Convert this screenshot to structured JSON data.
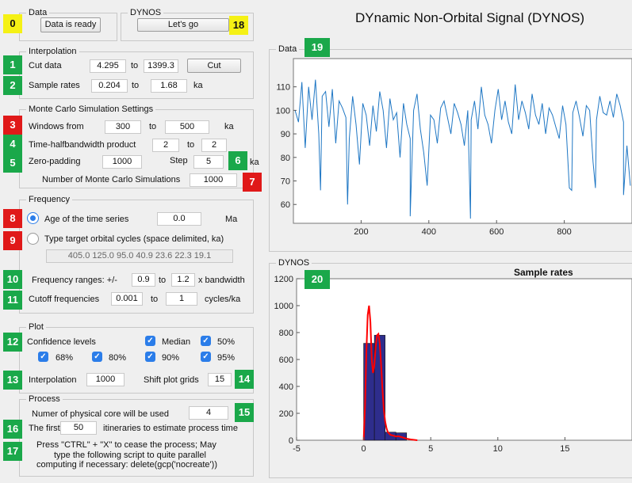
{
  "app_title": "DYnamic Non-Orbital Signal (DYNOS)",
  "data_panel": {
    "title": "Data",
    "status_button": "Data is ready"
  },
  "dynos_panel": {
    "title": "DYNOS",
    "go_button": "Let's go"
  },
  "interpolation": {
    "title": "Interpolation",
    "cut_label": "Cut data",
    "cut_from": "4.295",
    "cut_to_label": "to",
    "cut_to": "1399.3",
    "cut_button": "Cut",
    "sample_label": "Sample rates",
    "sample_from": "0.204",
    "sample_to_label": "to",
    "sample_to": "1.68",
    "sample_unit": "ka"
  },
  "monte_carlo": {
    "title": "Monte Carlo Simulation Settings",
    "windows_label": "Windows from",
    "windows_from": "300",
    "windows_to_label": "to",
    "windows_to": "500",
    "windows_unit": "ka",
    "thb_label": "Time-halfbandwidth product",
    "thb_from": "2",
    "thb_to_label": "to",
    "thb_to": "2",
    "zp_label": "Zero-padding",
    "zp_value": "1000",
    "step_label": "Step",
    "step_value": "5",
    "step_unit": "ka",
    "nsim_label": "Number of Monte Carlo Simulations",
    "nsim_value": "1000"
  },
  "frequency": {
    "title": "Frequency",
    "age_label": "Age of the time series",
    "age_value": "0.0",
    "age_unit": "Ma",
    "target_label": "Type target orbital cycles (space delimited, ka)",
    "target_value": "405.0 125.0 95.0 40.9 23.6 22.3 19.1",
    "ranges_label": "Frequency ranges: +/-",
    "ranges_from": "0.9",
    "ranges_to_label": "to",
    "ranges_to": "1.2",
    "ranges_unit": "x bandwidth",
    "cutoff_label": "Cutoff frequencies",
    "cutoff_from": "0.001",
    "cutoff_to_label": "to",
    "cutoff_to": "1",
    "cutoff_unit": "cycles/ka"
  },
  "plot": {
    "title": "Plot",
    "confidence_label": "Confidence levels",
    "median_label": "Median",
    "p50_label": "50%",
    "p68_label": "68%",
    "p80_label": "80%",
    "p90_label": "90%",
    "p95_label": "95%",
    "interp_label": "Interpolation",
    "interp_value": "1000",
    "shift_label": "Shift plot grids",
    "shift_value": "15"
  },
  "process": {
    "title": "Process",
    "cores_label": "Numer of physical core will be used",
    "cores_value": "4",
    "first_label": "The first",
    "first_value": "50",
    "first_suffix": "itineraries to estimate process time",
    "note_line1": "Press \"CTRL\" + \"X\" to cease the process;  May",
    "note_line2": "type the following script to quite parallel",
    "note_line3": "computing if necessary:  delete(gcp('nocreate'))"
  },
  "badges": {
    "b0": "0",
    "b1": "1",
    "b2": "2",
    "b3": "3",
    "b4": "4",
    "b5": "5",
    "b6": "6",
    "b7": "7",
    "b8": "8",
    "b9": "9",
    "b10": "10",
    "b11": "11",
    "b12": "12",
    "b13": "13",
    "b14": "14",
    "b15": "15",
    "b16": "16",
    "b17": "17",
    "b18": "18",
    "b19": "19",
    "b20": "20"
  },
  "colors": {
    "badge_green": "#1aa84a",
    "badge_red": "#e01919",
    "badge_yellow": "#f5f115",
    "checkbox": "#2b7de9",
    "line_series": "#1f77c4",
    "bar_fill": "#2e2d8c",
    "density": "#ff0000"
  },
  "chart_data": [
    {
      "type": "line",
      "panel_title": "Data",
      "xlim": [
        0,
        1000
      ],
      "ylim": [
        52,
        122
      ],
      "xticks": [
        200,
        400,
        600,
        800
      ],
      "yticks": [
        60,
        70,
        80,
        90,
        100,
        110
      ],
      "x": [
        5,
        15,
        25,
        35,
        45,
        55,
        65,
        75,
        85,
        95,
        105,
        115,
        125,
        135,
        145,
        155,
        165,
        175,
        185,
        195,
        205,
        215,
        225,
        235,
        245,
        255,
        265,
        275,
        285,
        295,
        305,
        315,
        325,
        335,
        345,
        355,
        365,
        375,
        385,
        395,
        405,
        415,
        425,
        435,
        445,
        455,
        465,
        475,
        485,
        495,
        505,
        515,
        525,
        535,
        545,
        555,
        565,
        575,
        585,
        595,
        605,
        615,
        625,
        635,
        645,
        655,
        665,
        675,
        685,
        695,
        705,
        715,
        725,
        735,
        745,
        755,
        765,
        775,
        785,
        795,
        805,
        815,
        825,
        835,
        845,
        855,
        865,
        875,
        885,
        895,
        905,
        915,
        925,
        935,
        945,
        955,
        965,
        975,
        985,
        995
      ],
      "y": [
        100,
        95,
        112,
        84,
        110,
        96,
        113,
        90,
        106,
        108,
        93,
        109,
        86,
        104,
        101,
        97,
        88,
        106,
        94,
        77,
        103,
        98,
        85,
        102,
        91,
        108,
        100,
        84,
        105,
        96,
        99,
        80,
        103,
        94,
        88,
        100,
        107,
        92,
        82,
        68,
        98,
        96,
        86,
        101,
        104,
        97,
        90,
        103,
        99,
        94,
        85,
        100,
        96,
        104,
        92,
        110,
        98,
        94,
        86,
        100,
        109,
        96,
        104,
        95,
        90,
        111,
        96,
        104,
        99,
        92,
        107,
        98,
        94,
        103,
        90,
        101,
        98,
        93,
        88,
        102,
        94,
        67,
        99,
        104,
        97,
        89,
        102,
        100,
        78,
        96,
        106,
        99,
        98,
        104,
        97,
        107,
        102,
        95,
        85,
        68
      ],
      "dips": [
        [
          345,
          55
        ],
        [
          523,
          54
        ],
        [
          160,
          60
        ],
        [
          80,
          66
        ],
        [
          822,
          66
        ],
        [
          892,
          67
        ],
        [
          975,
          64
        ]
      ]
    },
    {
      "type": "bar",
      "panel_title": "DYNOS",
      "title": "Sample rates",
      "xlim": [
        -5,
        20
      ],
      "ylim": [
        0,
        1200
      ],
      "xticks": [
        -5,
        0,
        5,
        10,
        15
      ],
      "yticks": [
        0,
        200,
        400,
        600,
        800,
        1000,
        1200
      ],
      "bins": [
        [
          0,
          0.8,
          720
        ],
        [
          0.8,
          1.6,
          780
        ],
        [
          1.6,
          2.4,
          60
        ],
        [
          2.4,
          3.2,
          55
        ]
      ],
      "density_x": [
        0,
        0.1,
        0.2,
        0.3,
        0.4,
        0.5,
        0.6,
        0.7,
        0.8,
        0.9,
        1.0,
        1.1,
        1.2,
        1.3,
        1.4,
        1.5,
        1.6,
        1.7,
        1.8,
        2.0,
        2.2,
        2.4,
        2.6,
        2.8,
        3.0,
        3.2,
        3.5,
        4.0
      ],
      "density_y": [
        0,
        250,
        650,
        930,
        1000,
        880,
        600,
        500,
        560,
        700,
        780,
        790,
        720,
        560,
        380,
        230,
        140,
        90,
        60,
        40,
        35,
        28,
        30,
        24,
        18,
        12,
        6,
        0
      ]
    }
  ]
}
